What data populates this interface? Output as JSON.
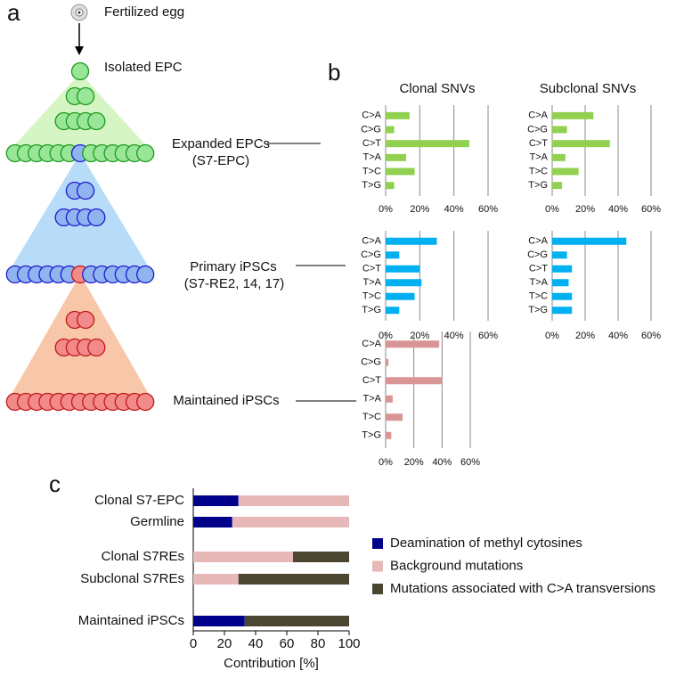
{
  "panel_labels": [
    "a",
    "b",
    "c"
  ],
  "diagram": {
    "labels": [
      "Fertilized egg",
      "Isolated EPC",
      "Expanded EPCs",
      "(S7-EPC)",
      "Primary iPSCs",
      "(S7-RE2, 14, 17)",
      "Maintained iPSCs"
    ]
  },
  "column_titles": [
    "Clonal SNVs",
    "Subclonal SNVs"
  ],
  "chart_data": [
    {
      "type": "bar",
      "horizontal": true,
      "categories": [
        "C>A",
        "C>G",
        "C>T",
        "T>A",
        "T>C",
        "T>G"
      ],
      "values": [
        14,
        5,
        49,
        12,
        17,
        5
      ],
      "color": "#92d050",
      "xlim": [
        0,
        60
      ],
      "xticks": [
        {
          "value": 0,
          "label": "0%"
        },
        {
          "value": 20,
          "label": "20%"
        },
        {
          "value": 40,
          "label": "40%"
        },
        {
          "value": 60,
          "label": "60%"
        }
      ],
      "grid": true
    },
    {
      "type": "bar",
      "horizontal": true,
      "categories": [
        "C>A",
        "C>G",
        "C>T",
        "T>A",
        "T>C",
        "T>G"
      ],
      "values": [
        25,
        9,
        35,
        8,
        16,
        6
      ],
      "color": "#92d050",
      "xlim": [
        0,
        60
      ],
      "xticks": [
        {
          "value": 0,
          "label": "0%"
        },
        {
          "value": 20,
          "label": "20%"
        },
        {
          "value": 40,
          "label": "40%"
        },
        {
          "value": 60,
          "label": "60%"
        }
      ],
      "grid": true
    },
    {
      "type": "bar",
      "horizontal": true,
      "categories": [
        "C>A",
        "C>G",
        "C>T",
        "T>A",
        "T>C",
        "T>G"
      ],
      "values": [
        30,
        8,
        20,
        21,
        17,
        8
      ],
      "color": "#00b0f0",
      "xlim": [
        0,
        60
      ],
      "xticks": [
        {
          "value": 0,
          "label": "0%"
        },
        {
          "value": 20,
          "label": "20%"
        },
        {
          "value": 40,
          "label": "40%"
        },
        {
          "value": 60,
          "label": "60%"
        }
      ],
      "grid": true
    },
    {
      "type": "bar",
      "horizontal": true,
      "categories": [
        "C>A",
        "C>G",
        "C>T",
        "T>A",
        "T>C",
        "T>G"
      ],
      "values": [
        45,
        9,
        12,
        10,
        12,
        12
      ],
      "color": "#00b0f0",
      "xlim": [
        0,
        60
      ],
      "xticks": [
        {
          "value": 0,
          "label": "0%"
        },
        {
          "value": 20,
          "label": "20%"
        },
        {
          "value": 40,
          "label": "40%"
        },
        {
          "value": 60,
          "label": "60%"
        }
      ],
      "grid": true
    },
    {
      "type": "bar",
      "horizontal": true,
      "categories": [
        "C>A",
        "C>G",
        "C>T",
        "T>A",
        "T>C",
        "T>G"
      ],
      "values": [
        38,
        2,
        40,
        5,
        12,
        4
      ],
      "color": "#d99594",
      "xlim": [
        0,
        60
      ],
      "xticks": [
        {
          "value": 0,
          "label": "0%"
        },
        {
          "value": 20,
          "label": "20%"
        },
        {
          "value": 40,
          "label": "40%"
        },
        {
          "value": 60,
          "label": "60%"
        }
      ],
      "grid": true
    },
    {
      "type": "bar",
      "horizontal": true,
      "stacked": true,
      "categories": [
        "Clonal S7-EPC",
        "Germline",
        "Clonal S7REs",
        "Subclonal S7REs",
        "Maintained iPSCs"
      ],
      "series": [
        {
          "name": "Deamination of methyl cytosines",
          "color": "#00008b",
          "values": [
            29,
            25,
            0,
            0,
            33
          ]
        },
        {
          "name": "Background mutations",
          "color": "#e6b9b8",
          "values": [
            71,
            75,
            64,
            29,
            0
          ]
        },
        {
          "name": "Mutations associated with C>A transversions",
          "color": "#4a4632",
          "values": [
            0,
            0,
            36,
            71,
            67
          ]
        }
      ],
      "xlabel": "Contribution [%]",
      "xlim": [
        0,
        100
      ],
      "xticks": [
        0,
        20,
        40,
        60,
        80,
        100
      ]
    }
  ]
}
